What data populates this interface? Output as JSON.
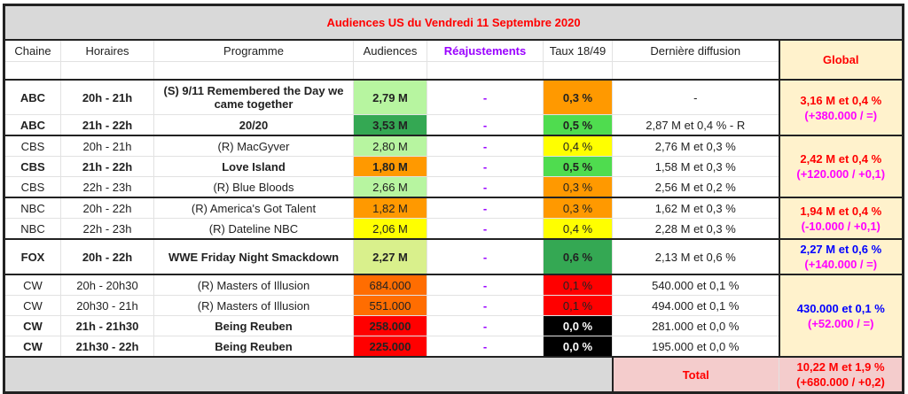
{
  "title": "Audiences US du Vendredi 11 Septembre 2020",
  "headers": {
    "chaine": "Chaine",
    "horaires": "Horaires",
    "programme": "Programme",
    "audiences": "Audiences",
    "reajustements": "Réajustements",
    "taux": "Taux 18/49",
    "derniere": "Dernière diffusion",
    "global": "Global"
  },
  "rows": [
    {
      "chaine": "ABC",
      "horaires": "20h - 21h",
      "programme": "(S) 9/11 Remembered the Day we came together",
      "audience": "2,79 M",
      "aud_color": "#b7f5a0",
      "reaj": "-",
      "taux": "0,3 %",
      "taux_color": "#ff9900",
      "derniere": "-",
      "bold": true
    },
    {
      "chaine": "ABC",
      "horaires": "21h - 22h",
      "programme": "20/20",
      "audience": "3,53 M",
      "aud_color": "#34a853",
      "reaj": "-",
      "taux": "0,5 %",
      "taux_color": "#4fdc4f",
      "derniere": "2,87 M et 0,4 % - R",
      "bold": true
    },
    {
      "chaine": "CBS",
      "horaires": "20h - 21h",
      "programme": "(R) MacGyver",
      "audience": "2,80 M",
      "aud_color": "#b7f5a0",
      "reaj": "-",
      "taux": "0,4 %",
      "taux_color": "#ffff00",
      "derniere": "2,76 M et 0,3 %",
      "bold": false
    },
    {
      "chaine": "CBS",
      "horaires": "21h - 22h",
      "programme": "Love Island",
      "audience": "1,80 M",
      "aud_color": "#ff9900",
      "reaj": "-",
      "taux": "0,5 %",
      "taux_color": "#4fdc4f",
      "derniere": "1,58 M et 0,3 %",
      "bold": true
    },
    {
      "chaine": "CBS",
      "horaires": "22h - 23h",
      "programme": "(R) Blue Bloods",
      "audience": "2,66 M",
      "aud_color": "#b7f5a0",
      "reaj": "-",
      "taux": "0,3 %",
      "taux_color": "#ff9900",
      "derniere": "2,56 M et 0,2 %",
      "bold": false
    },
    {
      "chaine": "NBC",
      "horaires": "20h - 22h",
      "programme": "(R) America's Got Talent",
      "audience": "1,82 M",
      "aud_color": "#ff9900",
      "reaj": "-",
      "taux": "0,3 %",
      "taux_color": "#ff9900",
      "derniere": "1,62 M et 0,3 %",
      "bold": false
    },
    {
      "chaine": "NBC",
      "horaires": "22h - 23h",
      "programme": "(R) Dateline NBC",
      "audience": "2,06 M",
      "aud_color": "#ffff00",
      "reaj": "-",
      "taux": "0,4 %",
      "taux_color": "#ffff00",
      "derniere": "2,28 M et 0,3 %",
      "bold": false
    },
    {
      "chaine": "FOX",
      "horaires": "20h - 22h",
      "programme": "WWE Friday Night Smackdown",
      "audience": "2,27 M",
      "aud_color": "#d9f08c",
      "reaj": "-",
      "taux": "0,6 %",
      "taux_color": "#34a853",
      "derniere": "2,13 M et 0,6 %",
      "bold": true
    },
    {
      "chaine": "CW",
      "horaires": "20h - 20h30",
      "programme": "(R) Masters of Illusion",
      "audience": "684.000",
      "aud_color": "#ff6d01",
      "reaj": "-",
      "taux": "0,1 %",
      "taux_color": "#ff0000",
      "derniere": "540.000 et 0,1 %",
      "bold": false
    },
    {
      "chaine": "CW",
      "horaires": "20h30 - 21h",
      "programme": "(R) Masters of Illusion",
      "audience": "551.000",
      "aud_color": "#ff6d01",
      "reaj": "-",
      "taux": "0,1 %",
      "taux_color": "#ff0000",
      "derniere": "494.000 et 0,1 %",
      "bold": false
    },
    {
      "chaine": "CW",
      "horaires": "21h - 21h30",
      "programme": "Being Reuben",
      "audience": "258.000",
      "aud_color": "#ff0000",
      "reaj": "-",
      "taux": "0,0 %",
      "taux_color": "#000000",
      "derniere": "281.000 et 0,0 %",
      "bold": true
    },
    {
      "chaine": "CW",
      "horaires": "21h30 - 22h",
      "programme": "Being Reuben",
      "audience": "225.000",
      "aud_color": "#ff0000",
      "reaj": "-",
      "taux": "0,0 %",
      "taux_color": "#000000",
      "derniere": "195.000 et 0,0 %",
      "bold": true
    }
  ],
  "globals": [
    {
      "rows": 2,
      "main": "3,16 M et 0,4 %",
      "diff": "(+380.000 / =)",
      "color": "#ff0000"
    },
    {
      "rows": 3,
      "main": "2,42 M et 0,4 %",
      "diff": "(+120.000 / +0,1)",
      "color": "#ff0000"
    },
    {
      "rows": 2,
      "main": "1,94 M et 0,4 %",
      "diff": "(-10.000 / +0,1)",
      "color": "#ff0000"
    },
    {
      "rows": 1,
      "main": "2,27 M et 0,6 %",
      "diff": "(+140.000 / =)",
      "color": "#0000ff"
    },
    {
      "rows": 4,
      "main": "430.000 et 0,1 %",
      "diff": "(+52.000 / =)",
      "color": "#0000ff"
    }
  ],
  "total": {
    "label": "Total",
    "main": "10,22 M et 1,9 %",
    "diff": "(+680.000 / +0,2)"
  }
}
